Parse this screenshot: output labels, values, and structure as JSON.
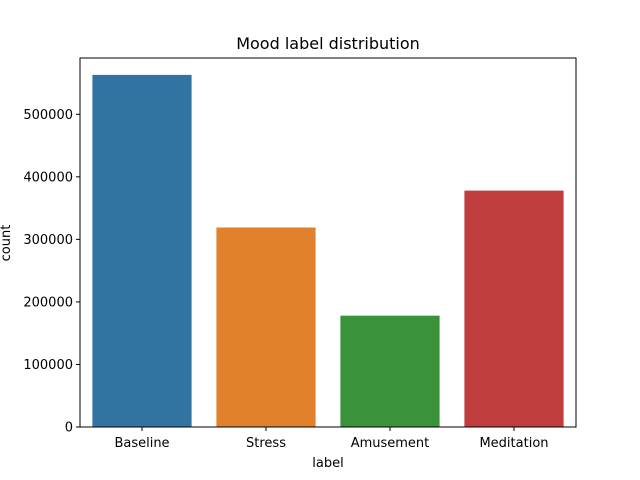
{
  "chart_data": {
    "type": "bar",
    "title": "Mood label distribution",
    "xlabel": "label",
    "ylabel": "count",
    "categories": [
      "Baseline",
      "Stress",
      "Amusement",
      "Meditation"
    ],
    "values": [
      563000,
      319000,
      178000,
      378000
    ],
    "colors": [
      "#3274a1",
      "#e1812c",
      "#3a923a",
      "#c03d3e"
    ],
    "ylim": [
      0,
      590000
    ],
    "yticks": [
      0,
      100000,
      200000,
      300000,
      400000,
      500000
    ],
    "ytick_labels": [
      "0",
      "100000",
      "200000",
      "300000",
      "400000",
      "500000"
    ],
    "grid": false,
    "legend": "none"
  }
}
